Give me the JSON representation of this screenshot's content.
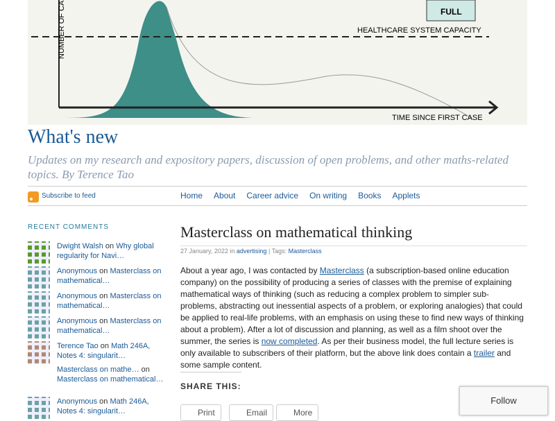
{
  "header_image": {
    "y_axis": "NUMBER OF CA",
    "capacity": "HEALTHCARE SYSTEM CAPACITY",
    "x_axis": "TIME SINCE FIRST CASE",
    "sign": "FULL"
  },
  "site": {
    "title": "What's new",
    "tagline": "Updates on my research and expository papers, discussion of open problems, and other maths-related topics. By Terence Tao"
  },
  "feed": "Subscribe to feed",
  "nav": [
    "Home",
    "About",
    "Career advice",
    "On writing",
    "Books",
    "Applets"
  ],
  "recent_comments": {
    "heading": "RECENT COMMENTS",
    "connector": "on",
    "items": [
      {
        "author": "Dwight Walsh",
        "post": "Why global regularity for Navi…",
        "avatar": "green"
      },
      {
        "author": "Anonymous",
        "post": "Masterclass on mathematical…",
        "avatar": "teal"
      },
      {
        "author": "Anonymous",
        "post": "Masterclass on mathematical…",
        "avatar": "teal"
      },
      {
        "author": "Anonymous",
        "post": "Masterclass on mathematical…",
        "avatar": "teal"
      },
      {
        "author": "Terence Tao",
        "post": "Math 246A, Notes 4: singularit…",
        "avatar": "photo"
      },
      {
        "author": "Masterclass on mathe…",
        "post": "Masterclass on mathematical…",
        "avatar": "none"
      },
      {
        "author": "Anonymous",
        "post": "Math 246A, Notes 4: singularit…",
        "avatar": "teal"
      }
    ]
  },
  "post": {
    "title": "Masterclass on mathematical thinking",
    "date": "27 January, 2022 in",
    "category": "advertising",
    "tags_label": "| Tags:",
    "tag": "Masterclass",
    "body": [
      {
        "text": "About a year ago, I was contacted by "
      },
      {
        "text": "Masterclass",
        "link": true
      },
      {
        "text": " (a subscription-based online education company) on the possibility of producing a series of classes with the premise of explaining mathematical ways of thinking (such as reducing a complex problem to simpler sub-problems, abstracting out inessential aspects of a problem, or exploring analogies) that could be applied to real-life problems, with an emphasis on using these to find new ways of thinking about a problem). After a lot of discussion and planning, as well as a film shoot over the summer, the series is "
      },
      {
        "text": "now completed",
        "link": true
      },
      {
        "text": ". As per their business model, the full lecture series is only available to subscribers of their platform, but the above link does contain a "
      },
      {
        "text": "trailer",
        "link": true
      },
      {
        "text": " and some sample content."
      }
    ],
    "share": {
      "heading": "SHARE THIS:",
      "buttons": [
        "Print",
        "Email",
        "More"
      ]
    }
  },
  "follow": "Follow"
}
